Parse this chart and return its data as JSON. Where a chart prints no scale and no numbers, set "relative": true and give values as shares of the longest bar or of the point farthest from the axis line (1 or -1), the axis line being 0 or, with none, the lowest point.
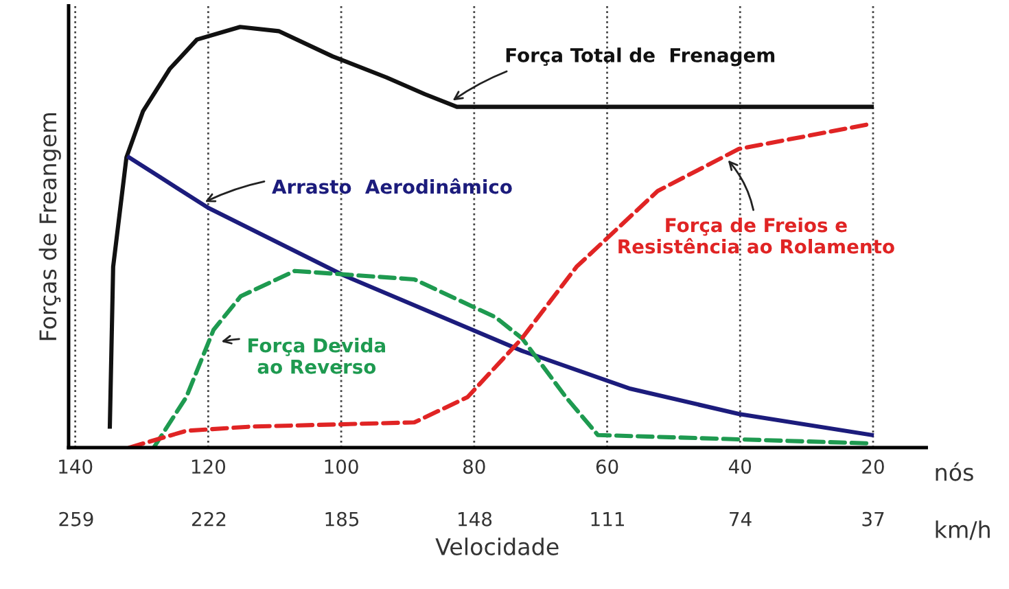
{
  "chart_data": {
    "type": "line",
    "relative": true,
    "ylabel": "Forças de Freangem",
    "xlabel": "Velocidade",
    "xlim": [
      141,
      12
    ],
    "xticks": [
      140,
      120,
      100,
      80,
      60,
      40,
      20
    ],
    "x2lim": [
      261.1,
      22.2
    ],
    "x2ticks": [
      259,
      222,
      185,
      148,
      111,
      74,
      37
    ],
    "grid": "x",
    "series": [
      {
        "color": "#111111",
        "line_style": "solid",
        "x": [
          134.8,
          134.3,
          132.3,
          129.8,
          125.8,
          121.7,
          115.2,
          109.4,
          101.3,
          93.2,
          87.4,
          82.6,
          20.2
        ],
        "values": [
          0.05,
          0.43,
          0.69,
          0.8,
          0.9,
          0.97,
          1.0,
          0.99,
          0.93,
          0.88,
          0.84,
          0.81,
          0.81
        ]
      },
      {
        "color": "#1c1c7c",
        "line_style": "solid",
        "x": [
          131.9,
          120,
          99.7,
          72.8,
          56.5,
          40.2,
          20.2
        ],
        "values": [
          0.69,
          0.57,
          0.41,
          0.23,
          0.14,
          0.08,
          0.03
        ]
      },
      {
        "color": "#1e9a50",
        "line_style": "dashed",
        "x": [
          128.2,
          123.3,
          119.2,
          115.1,
          107,
          89,
          76.8,
          72.8,
          66.2,
          61.4,
          20.2
        ],
        "values": [
          0.0,
          0.12,
          0.28,
          0.36,
          0.42,
          0.4,
          0.31,
          0.26,
          0.12,
          0.03,
          0.01
        ]
      },
      {
        "color": "#e02424",
        "line_style": "dashed",
        "x": [
          131.9,
          123.3,
          113.6,
          89,
          81,
          72.8,
          64.6,
          52.4,
          40.2,
          20.2
        ],
        "values": [
          0.0,
          0.04,
          0.05,
          0.06,
          0.12,
          0.26,
          0.43,
          0.61,
          0.71,
          0.77
        ]
      }
    ],
    "annotations": [
      {
        "text": "Força Total de  Frenagem",
        "x": 83.7,
        "y": 0.82
      },
      {
        "text": "Arrasto  Aerodinâmico",
        "x": 121,
        "y": 0.58
      },
      {
        "text": "Força Devida\nao Reverso",
        "x": 118.6,
        "y": 0.25
      },
      {
        "text": "Força de Freios e\nResistência ao Rolamento",
        "x": 42.2,
        "y": 0.69
      },
      "nós",
      "km/h"
    ]
  }
}
